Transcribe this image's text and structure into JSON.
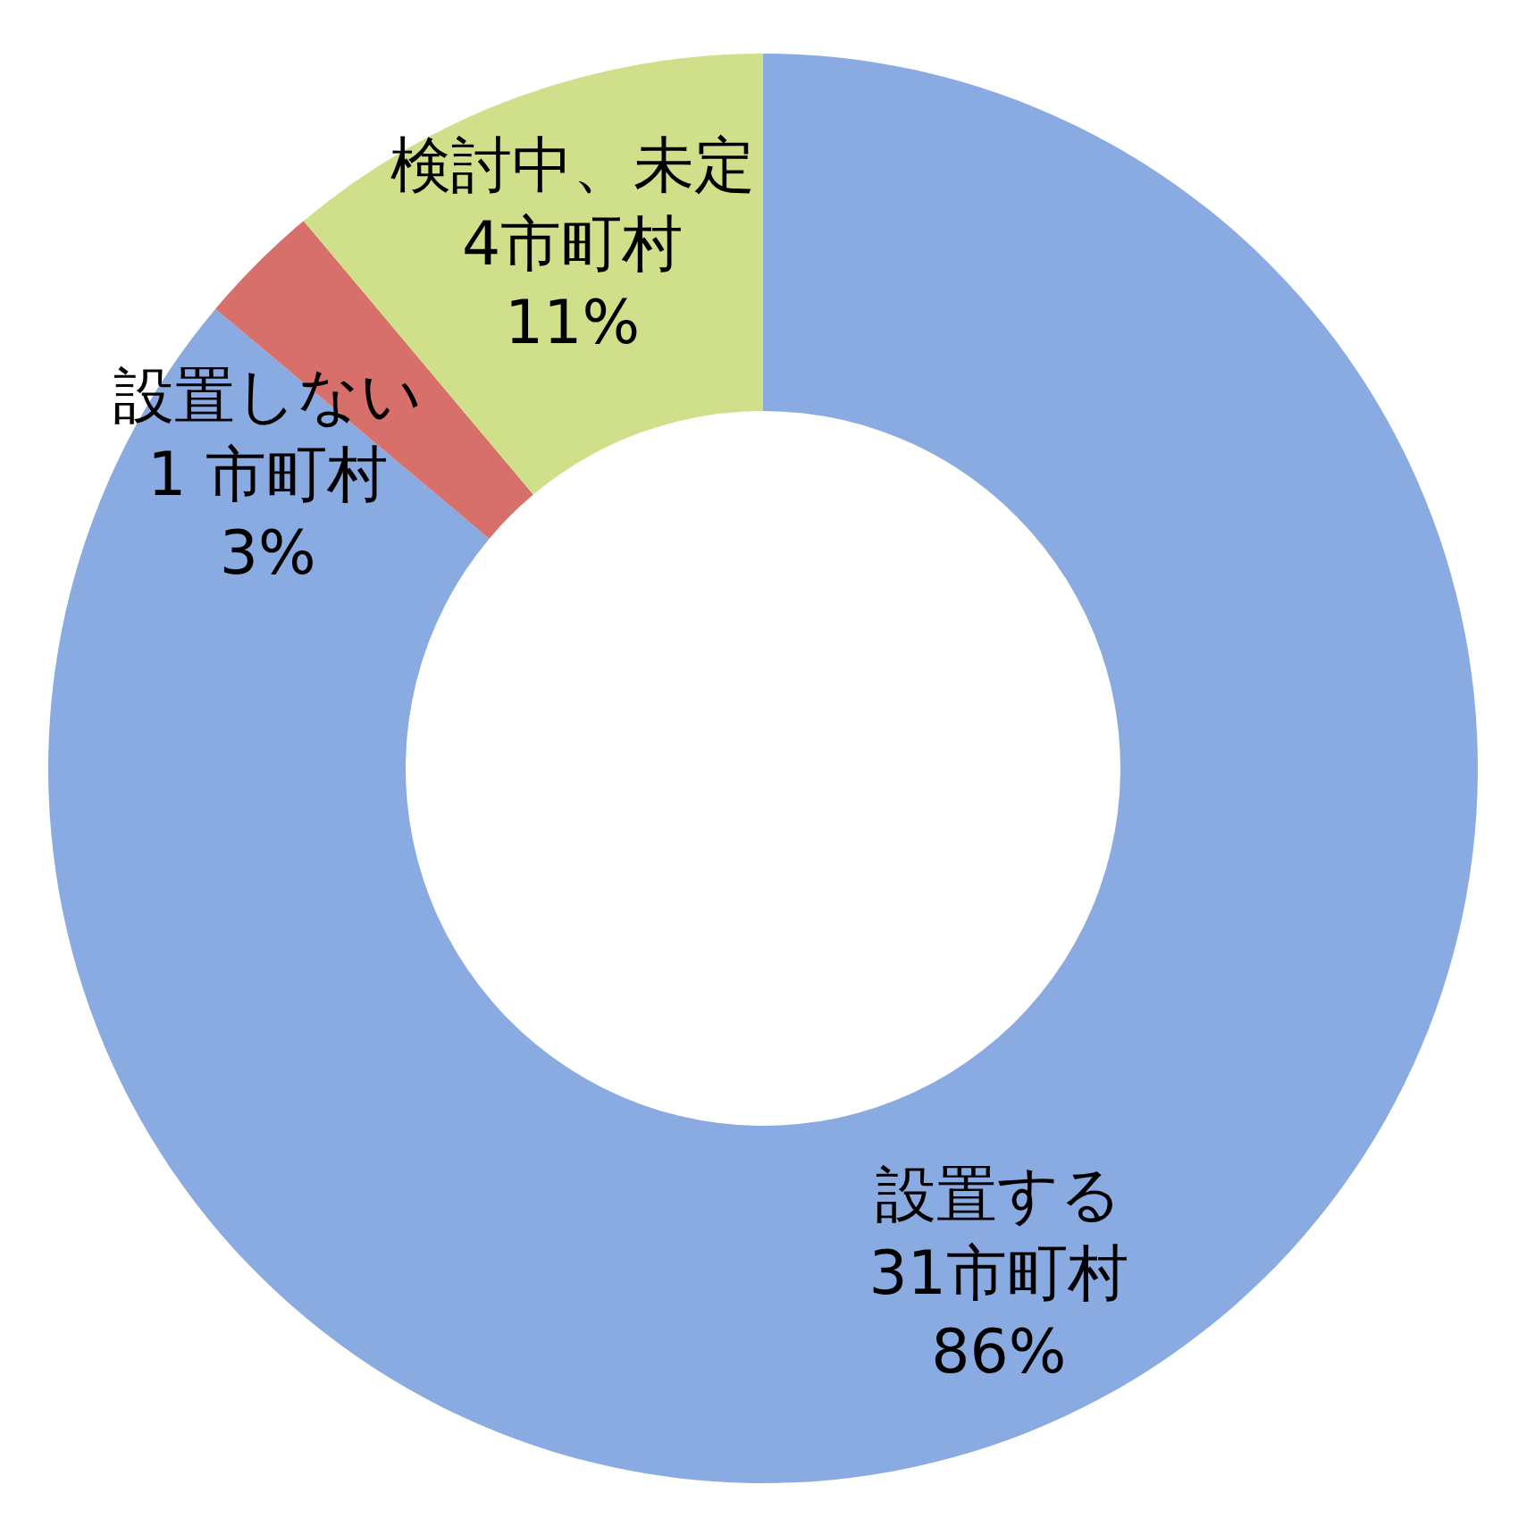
{
  "chart_data": {
    "type": "donut",
    "categories": [
      "設置する",
      "設置しない",
      "検討中、未定"
    ],
    "values": [
      31,
      1,
      4
    ],
    "value_labels": [
      "31市町村\n86%",
      "1 市町村\n3%",
      "4市町村\n11%"
    ],
    "colors": [
      "#8aaae2",
      "#d7706a",
      "#d0e08a"
    ]
  }
}
